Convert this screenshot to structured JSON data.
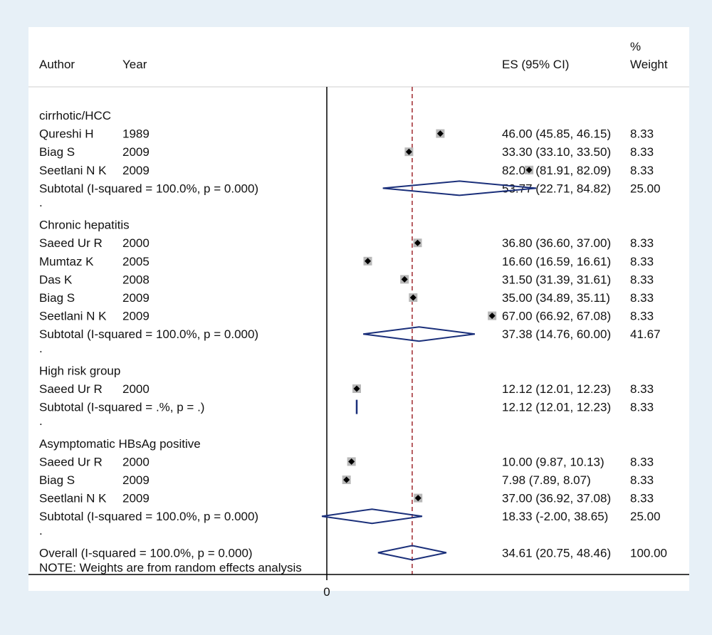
{
  "chart_data": {
    "type": "forest",
    "headers": {
      "author": "Author",
      "year": "Year",
      "es": "ES (95% CI)",
      "weight_line1": "%",
      "weight_line2": "Weight"
    },
    "x_tick": "0",
    "note": "NOTE: Weights are from random effects analysis",
    "reference_line": 34.61,
    "groups": [
      {
        "name": "cirrhotic/HCC",
        "studies": [
          {
            "author": "Qureshi H",
            "year": "1989",
            "es": 46.0,
            "lo": 45.85,
            "hi": 46.15,
            "es_text": "46.00 (45.85, 46.15)",
            "weight": "8.33"
          },
          {
            "author": "Biag S",
            "year": "2009",
            "es": 33.3,
            "lo": 33.1,
            "hi": 33.5,
            "es_text": "33.30 (33.10, 33.50)",
            "weight": "8.33"
          },
          {
            "author": "Seetlani N K",
            "year": "2009",
            "es": 82.0,
            "lo": 81.91,
            "hi": 82.09,
            "es_text": "82.00 (81.91, 82.09)",
            "weight": "8.33"
          }
        ],
        "subtotal": {
          "label": "Subtotal  (I-squared = 100.0%, p = 0.000)",
          "es": 53.77,
          "lo": 22.71,
          "hi": 84.82,
          "es_text": "53.77 (22.71, 84.82)",
          "weight": "25.00"
        }
      },
      {
        "name": "Chronic hepatitis",
        "studies": [
          {
            "author": "Saeed Ur R",
            "year": "2000",
            "es": 36.8,
            "lo": 36.6,
            "hi": 37.0,
            "es_text": "36.80 (36.60, 37.00)",
            "weight": "8.33"
          },
          {
            "author": "Mumtaz K",
            "year": "2005",
            "es": 16.6,
            "lo": 16.59,
            "hi": 16.61,
            "es_text": "16.60 (16.59, 16.61)",
            "weight": "8.33"
          },
          {
            "author": "Das K",
            "year": "2008",
            "es": 31.5,
            "lo": 31.39,
            "hi": 31.61,
            "es_text": "31.50 (31.39, 31.61)",
            "weight": "8.33"
          },
          {
            "author": "Biag S",
            "year": "2009",
            "es": 35.0,
            "lo": 34.89,
            "hi": 35.11,
            "es_text": "35.00 (34.89, 35.11)",
            "weight": "8.33"
          },
          {
            "author": "Seetlani N K",
            "year": "2009",
            "es": 67.0,
            "lo": 66.92,
            "hi": 67.08,
            "es_text": "67.00 (66.92, 67.08)",
            "weight": "8.33"
          }
        ],
        "subtotal": {
          "label": "Subtotal  (I-squared = 100.0%, p = 0.000)",
          "es": 37.38,
          "lo": 14.76,
          "hi": 60.0,
          "es_text": "37.38 (14.76, 60.00)",
          "weight": "41.67"
        }
      },
      {
        "name": "High risk group",
        "studies": [
          {
            "author": "Saeed Ur R",
            "year": "2000",
            "es": 12.12,
            "lo": 12.01,
            "hi": 12.23,
            "es_text": "12.12 (12.01, 12.23)",
            "weight": "8.33"
          }
        ],
        "subtotal": {
          "label": "Subtotal  (I-squared = .%, p = .)",
          "es": 12.12,
          "lo": 12.01,
          "hi": 12.23,
          "es_text": "12.12 (12.01, 12.23)",
          "weight": "8.33"
        }
      },
      {
        "name": "Asymptomatic HBsAg positive",
        "studies": [
          {
            "author": "Saeed Ur R",
            "year": "2000",
            "es": 10.0,
            "lo": 9.87,
            "hi": 10.13,
            "es_text": "10.00 (9.87, 10.13)",
            "weight": "8.33"
          },
          {
            "author": "Biag S",
            "year": "2009",
            "es": 7.98,
            "lo": 7.89,
            "hi": 8.07,
            "es_text": "7.98 (7.89, 8.07)",
            "weight": "8.33"
          },
          {
            "author": "Seetlani N K",
            "year": "2009",
            "es": 37.0,
            "lo": 36.92,
            "hi": 37.08,
            "es_text": "37.00 (36.92, 37.08)",
            "weight": "8.33"
          }
        ],
        "subtotal": {
          "label": "Subtotal  (I-squared = 100.0%, p = 0.000)",
          "es": 18.33,
          "lo": -2.0,
          "hi": 38.65,
          "es_text": "18.33 (-2.00, 38.65)",
          "weight": "25.00"
        }
      }
    ],
    "overall": {
      "label": "Overall  (I-squared = 100.0%, p = 0.000)",
      "es": 34.61,
      "lo": 20.75,
      "hi": 48.46,
      "es_text": "34.61 (20.75, 48.46)",
      "weight": "100.00"
    },
    "separator": ".",
    "colors": {
      "background": "#e7f0f7",
      "panel": "#ffffff",
      "diamond": "#1a2f7a",
      "ref_line": "#a0282d",
      "marker_box": "#b8b8b8",
      "point": "#000000"
    }
  }
}
